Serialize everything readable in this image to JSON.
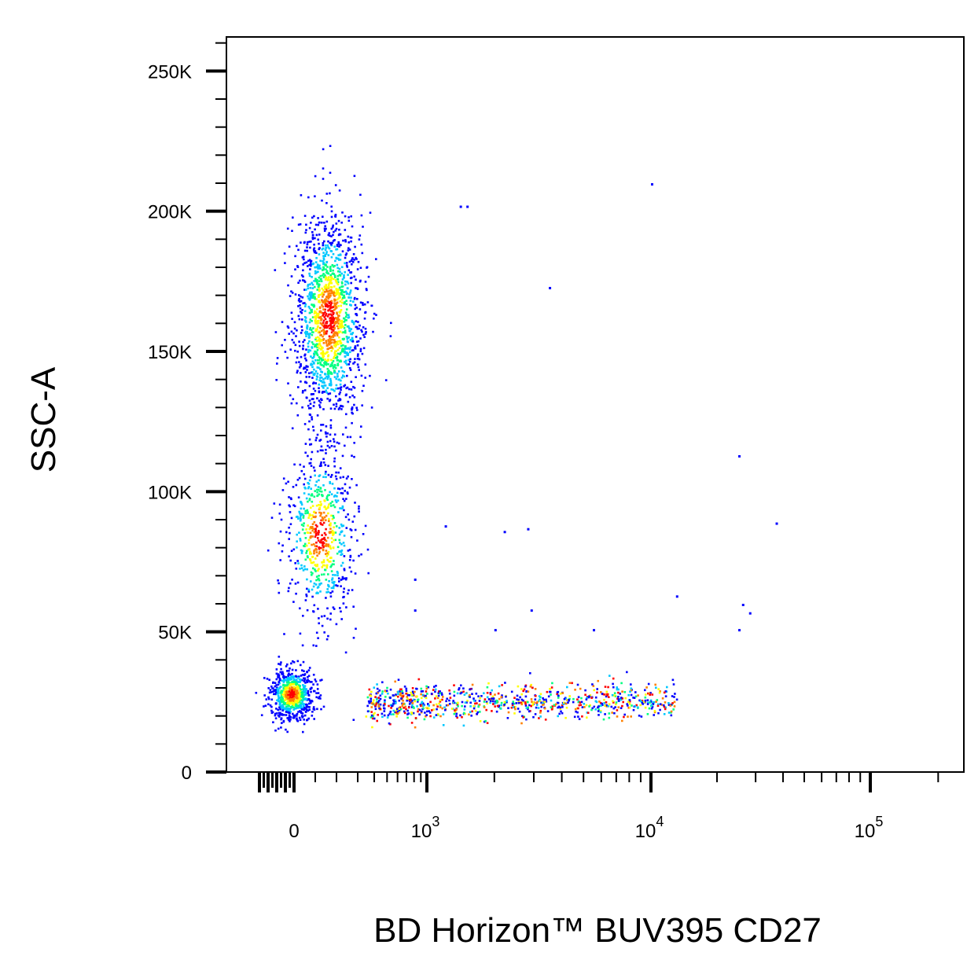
{
  "chart_data": {
    "type": "scatter",
    "title": "",
    "xlabel": "BD Horizon™ BUV395 CD27",
    "ylabel": "SSC-A",
    "x_scale": "biexponential",
    "y_scale": "linear",
    "xlim": [
      -200,
      260000
    ],
    "ylim": [
      0,
      262144
    ],
    "x_ticks": [
      {
        "value": 0,
        "label": "0"
      },
      {
        "value": 1000,
        "base": "10",
        "exp": "3"
      },
      {
        "value": 10000,
        "base": "10",
        "exp": "4"
      },
      {
        "value": 100000,
        "base": "10",
        "exp": "5"
      }
    ],
    "y_ticks": [
      {
        "value": 0,
        "label": "0"
      },
      {
        "value": 50000,
        "label": "50K"
      },
      {
        "value": 100000,
        "label": "100K"
      },
      {
        "value": 150000,
        "label": "150K"
      },
      {
        "value": 200000,
        "label": "200K"
      },
      {
        "value": 250000,
        "label": "250K"
      }
    ],
    "grid": false,
    "legend": "none",
    "colormap": [
      "#0000ff",
      "#00c8ff",
      "#00ff80",
      "#ffff00",
      "#ff8000",
      "#ff0000"
    ],
    "populations": [
      {
        "x_center": 0,
        "x_spread": 80,
        "y_center": 28000,
        "y_spread": 6000,
        "density": "high"
      },
      {
        "x_center": 150,
        "x_spread": 110,
        "y_center": 160000,
        "y_spread": 30000,
        "density": "high"
      },
      {
        "x_center": 120,
        "x_spread": 110,
        "y_center": 85000,
        "y_spread": 25000,
        "density": "medium"
      },
      {
        "x_center": 3000,
        "x_spread": "log 300–13000",
        "y_center": 25000,
        "y_spread": 5000,
        "density": "medium"
      }
    ],
    "outliers": [
      {
        "x": 1400,
        "y": 202000
      },
      {
        "x": 1500,
        "y": 202000
      },
      {
        "x": 10000,
        "y": 210000
      },
      {
        "x": 3500,
        "y": 173000
      },
      {
        "x": 25000,
        "y": 113000
      },
      {
        "x": 1200,
        "y": 88000
      },
      {
        "x": 2200,
        "y": 86000
      },
      {
        "x": 2800,
        "y": 87000
      },
      {
        "x": 37000,
        "y": 89000
      },
      {
        "x": 13000,
        "y": 63000
      },
      {
        "x": 26000,
        "y": 60000
      },
      {
        "x": 28000,
        "y": 57000
      },
      {
        "x": 2900,
        "y": 58000
      },
      {
        "x": 800,
        "y": 58000
      },
      {
        "x": 800,
        "y": 69000
      },
      {
        "x": 2000,
        "y": 51000
      },
      {
        "x": 5500,
        "y": 51000
      },
      {
        "x": 25000,
        "y": 51000
      }
    ]
  }
}
